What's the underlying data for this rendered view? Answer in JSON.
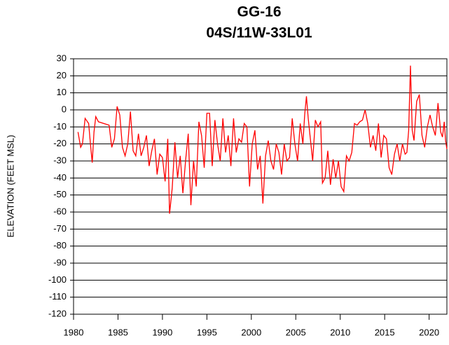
{
  "chart_data": {
    "type": "line",
    "title": "GG-16",
    "subtitle": "04S/11W-33L01",
    "ylabel": "ELEVATION (FEET MSL)",
    "xlim": [
      1980,
      2022
    ],
    "xticks": [
      1980,
      1985,
      1990,
      1995,
      2000,
      2005,
      2010,
      2015,
      2020
    ],
    "ylim": [
      -120,
      30
    ],
    "yticks": [
      -120,
      -110,
      -100,
      -90,
      -80,
      -70,
      -60,
      -50,
      -40,
      -30,
      -20,
      -10,
      0,
      10,
      20,
      30
    ],
    "grid": true,
    "series": [
      {
        "color": "#ff0000",
        "x": [
          1980.5,
          1980.8,
          1981,
          1981.3,
          1981.7,
          1981.9,
          1982.1,
          1982.3,
          1982.5,
          1982.8,
          1984,
          1984.3,
          1984.6,
          1984.9,
          1985.2,
          1985.5,
          1985.8,
          1986.1,
          1986.4,
          1986.7,
          1987,
          1987.3,
          1987.6,
          1987.9,
          1988.2,
          1988.5,
          1988.8,
          1989.1,
          1989.4,
          1989.7,
          1990,
          1990.3,
          1990.6,
          1990.8,
          1991.1,
          1991.4,
          1991.7,
          1992,
          1992.3,
          1992.6,
          1992.9,
          1993.2,
          1993.5,
          1993.8,
          1994.1,
          1994.4,
          1994.7,
          1995,
          1995.3,
          1995.6,
          1995.9,
          1996.2,
          1996.5,
          1996.8,
          1997.1,
          1997.4,
          1997.7,
          1998,
          1998.3,
          1998.6,
          1998.9,
          1999.2,
          1999.5,
          1999.8,
          2000.1,
          2000.4,
          2000.7,
          2001,
          2001.3,
          2001.6,
          2001.9,
          2002.2,
          2002.5,
          2002.8,
          2003.1,
          2003.4,
          2003.7,
          2004,
          2004.3,
          2004.6,
          2004.9,
          2005.2,
          2005.5,
          2005.8,
          2006,
          2006.2,
          2006.4,
          2006.6,
          2006.9,
          2007.2,
          2007.5,
          2007.8,
          2008,
          2008.3,
          2008.6,
          2008.9,
          2009.2,
          2009.5,
          2009.8,
          2010.1,
          2010.4,
          2010.7,
          2011,
          2011.3,
          2011.6,
          2011.9,
          2012.2,
          2012.5,
          2012.8,
          2013.1,
          2013.4,
          2013.7,
          2014,
          2014.3,
          2014.6,
          2014.9,
          2015.2,
          2015.5,
          2015.8,
          2016.1,
          2016.4,
          2016.7,
          2017,
          2017.3,
          2017.5,
          2017.7,
          2017.9,
          2018.1,
          2018.3,
          2018.6,
          2018.9,
          2019.2,
          2019.5,
          2019.8,
          2020.1,
          2020.4,
          2020.7,
          2021,
          2021.3,
          2021.5,
          2021.7,
          2021.85,
          2022
        ],
        "values": [
          -13,
          -22,
          -20,
          -5,
          -8,
          -20,
          -31,
          -13,
          -4,
          -7,
          -9,
          -22,
          -17,
          2,
          -3,
          -22,
          -27,
          -20,
          -1,
          -24,
          -27,
          -14,
          -27,
          -22,
          -15,
          -33,
          -24,
          -17,
          -38,
          -26,
          -28,
          -42,
          -17,
          -61,
          -46,
          -19,
          -40,
          -27,
          -49,
          -30,
          -14,
          -56,
          -30,
          -45,
          -7,
          -15,
          -34,
          -2,
          -2,
          -33,
          -6,
          -20,
          -30,
          -5,
          -25,
          -15,
          -33,
          -5,
          -25,
          -17,
          -19,
          -8,
          -10,
          -45,
          -20,
          -12,
          -35,
          -27,
          -55,
          -27,
          -18,
          -30,
          -35,
          -20,
          -25,
          -38,
          -20,
          -30,
          -28,
          -5,
          -20,
          -30,
          -8,
          -20,
          -3,
          8,
          -5,
          -15,
          -30,
          -6,
          -10,
          -7,
          -43,
          -40,
          -24,
          -44,
          -29,
          -40,
          -30,
          -45,
          -48,
          -27,
          -30,
          -25,
          -8,
          -9,
          -7,
          -6,
          0,
          -8,
          -22,
          -15,
          -24,
          -8,
          -28,
          -15,
          -17,
          -34,
          -38,
          -26,
          -20,
          -30,
          -20,
          -26,
          -25,
          -12,
          26,
          -12,
          -18,
          5,
          9,
          -15,
          -22,
          -10,
          -3,
          -10,
          -15,
          4,
          -13,
          -16,
          -7,
          -18,
          -23
        ]
      }
    ]
  }
}
